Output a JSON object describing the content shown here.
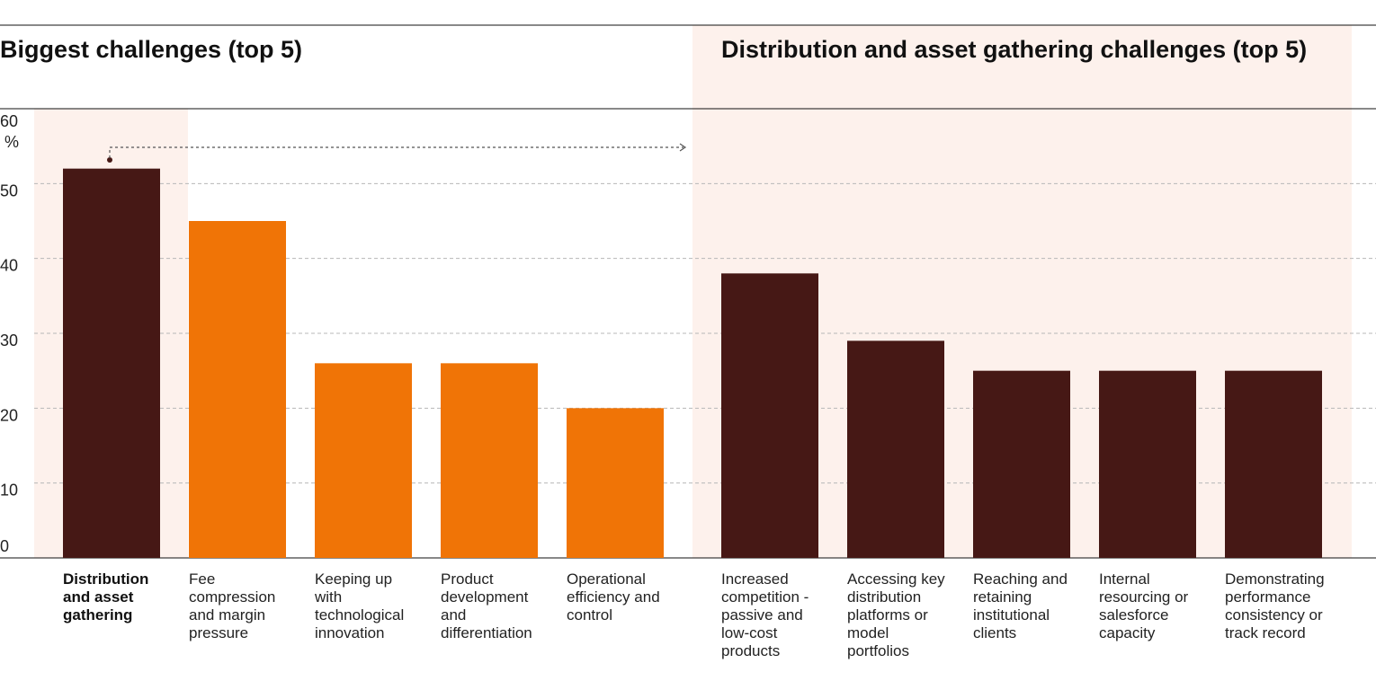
{
  "colors": {
    "dark": "#461815",
    "orange": "#f07406",
    "highlight": "#fdf1ec",
    "grid": "#b8b8b8",
    "connector": "#555555"
  },
  "chart_data": [
    {
      "type": "bar",
      "title": "Biggest challenges (top 5)",
      "ylabel": "",
      "y_unit": "%",
      "ylim": [
        0,
        60
      ],
      "yticks": [
        0,
        10,
        20,
        30,
        40,
        50,
        60
      ],
      "grid": true,
      "categories": [
        "Distribution and asset gathering",
        "Fee compression and margin pressure",
        "Keeping up with technological innovation",
        "Product development and differentiation",
        "Operational efficiency and control"
      ],
      "category_labels": [
        [
          "Distribution",
          "and asset",
          "gathering"
        ],
        [
          "Fee",
          "compression",
          "and margin",
          "pressure"
        ],
        [
          "Keeping up",
          "with",
          "technological",
          "innovation"
        ],
        [
          "Product",
          "development",
          "and",
          "differentiation"
        ],
        [
          "Operational",
          "efficiency and",
          "control"
        ]
      ],
      "values": [
        52,
        45,
        26,
        26,
        20
      ],
      "highlighted_category": "Distribution and asset gathering"
    },
    {
      "type": "bar",
      "title": "Distribution and asset gathering challenges (top 5)",
      "ylim": [
        0,
        60
      ],
      "grid": true,
      "categories": [
        "Increased competition - passive and low-cost products",
        "Accessing key distribution platforms or model portfolios",
        "Reaching and retaining institutional clients",
        "Internal resourcing or salesforce capacity",
        "Demonstrating performance consistency or track record"
      ],
      "category_labels": [
        [
          "Increased",
          "competition -",
          "passive and",
          "low-cost",
          "products"
        ],
        [
          "Accessing key",
          "distribution",
          "platforms or",
          "model",
          "portfolios"
        ],
        [
          "Reaching and",
          "retaining",
          "institutional",
          "clients"
        ],
        [
          "Internal",
          "resourcing or",
          "salesforce",
          "capacity"
        ],
        [
          "Demonstrating",
          "performance",
          "consistency or",
          "track record"
        ]
      ],
      "values": [
        38,
        29,
        25,
        25,
        25
      ]
    }
  ]
}
